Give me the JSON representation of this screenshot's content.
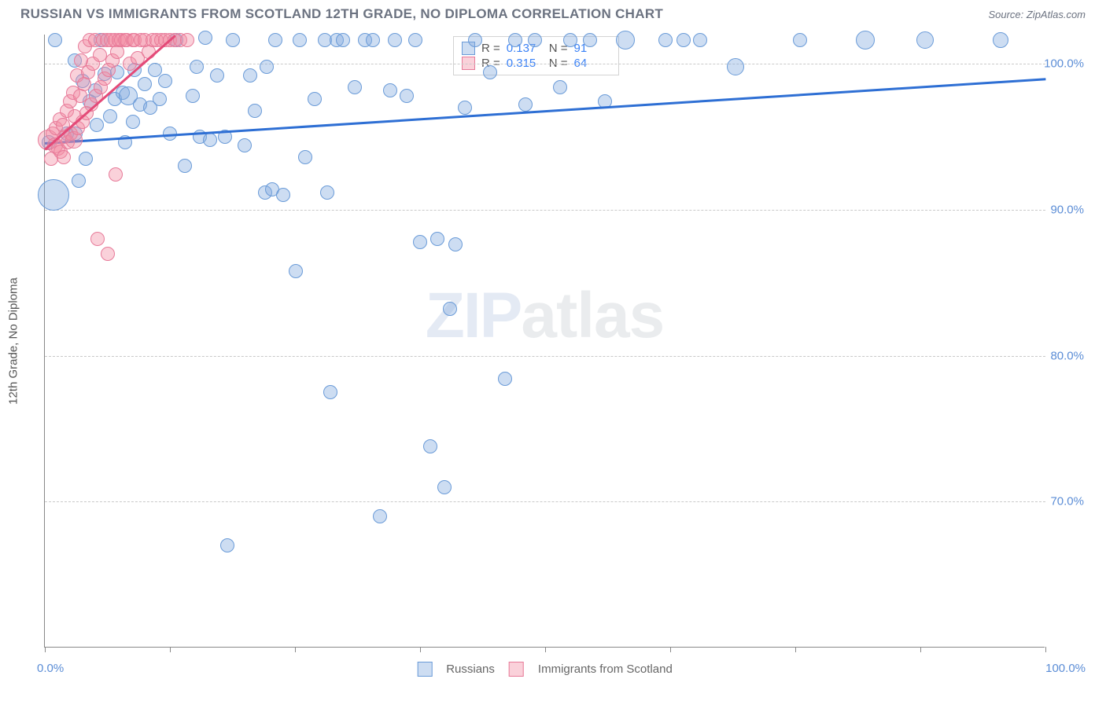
{
  "title": "RUSSIAN VS IMMIGRANTS FROM SCOTLAND 12TH GRADE, NO DIPLOMA CORRELATION CHART",
  "source_label": "Source: ZipAtlas.com",
  "ylabel": "12th Grade, No Diploma",
  "watermark": {
    "part1": "ZIP",
    "part2": "atlas"
  },
  "chart": {
    "type": "scatter",
    "background_color": "#ffffff",
    "grid_color": "#c9c9c9",
    "axis_color": "#888888",
    "xlim": [
      0,
      100
    ],
    "ylim": [
      60,
      102
    ],
    "ytick_labels": [
      {
        "value": 100,
        "label": "100.0%"
      },
      {
        "value": 90,
        "label": "90.0%"
      },
      {
        "value": 80,
        "label": "80.0%"
      },
      {
        "value": 70,
        "label": "70.0%"
      }
    ],
    "xtick_positions": [
      0,
      12.5,
      25,
      37.5,
      50,
      62.5,
      75,
      87.5,
      100
    ],
    "xlabel_start": "0.0%",
    "xlabel_end": "100.0%",
    "ytick_color": "#5b8dd6",
    "series": [
      {
        "name": "Russians",
        "fill": "rgba(131,171,223,0.40)",
        "stroke": "#6a9bd8",
        "marker_radius": 9,
        "trend": {
          "x1": 0,
          "y1": 94.6,
          "x2": 100,
          "y2": 99.0,
          "color": "#2e6fd4",
          "width": 2.5
        },
        "stats": {
          "R": "0.137",
          "N": "91"
        },
        "points": [
          {
            "x": 0.4,
            "y": 94.6,
            "r": 9
          },
          {
            "x": 0.9,
            "y": 91.0,
            "r": 20
          },
          {
            "x": 1.0,
            "y": 101.6,
            "r": 9
          },
          {
            "x": 2.2,
            "y": 95.2,
            "r": 9
          },
          {
            "x": 3.0,
            "y": 100.2,
            "r": 9
          },
          {
            "x": 3.1,
            "y": 95.2,
            "r": 9
          },
          {
            "x": 3.4,
            "y": 92.0,
            "r": 9
          },
          {
            "x": 3.8,
            "y": 98.8,
            "r": 9
          },
          {
            "x": 4.1,
            "y": 93.5,
            "r": 9
          },
          {
            "x": 4.5,
            "y": 97.4,
            "r": 9
          },
          {
            "x": 5.0,
            "y": 98.2,
            "r": 9
          },
          {
            "x": 5.2,
            "y": 95.8,
            "r": 9
          },
          {
            "x": 5.6,
            "y": 101.6,
            "r": 9
          },
          {
            "x": 6.0,
            "y": 99.3,
            "r": 9
          },
          {
            "x": 6.5,
            "y": 96.4,
            "r": 9
          },
          {
            "x": 7.0,
            "y": 97.6,
            "r": 9
          },
          {
            "x": 7.2,
            "y": 99.4,
            "r": 9
          },
          {
            "x": 7.8,
            "y": 98.0,
            "r": 9
          },
          {
            "x": 8.0,
            "y": 94.6,
            "r": 9
          },
          {
            "x": 8.3,
            "y": 97.8,
            "r": 12
          },
          {
            "x": 8.8,
            "y": 96.0,
            "r": 9
          },
          {
            "x": 9.0,
            "y": 99.6,
            "r": 9
          },
          {
            "x": 9.5,
            "y": 97.2,
            "r": 9
          },
          {
            "x": 10.0,
            "y": 98.6,
            "r": 9
          },
          {
            "x": 10.5,
            "y": 97.0,
            "r": 9
          },
          {
            "x": 11.0,
            "y": 99.6,
            "r": 9
          },
          {
            "x": 11.5,
            "y": 97.6,
            "r": 9
          },
          {
            "x": 12.0,
            "y": 98.8,
            "r": 9
          },
          {
            "x": 12.5,
            "y": 95.2,
            "r": 9
          },
          {
            "x": 13.1,
            "y": 101.6,
            "r": 9
          },
          {
            "x": 14.0,
            "y": 93.0,
            "r": 9
          },
          {
            "x": 14.8,
            "y": 97.8,
            "r": 9
          },
          {
            "x": 15.2,
            "y": 99.8,
            "r": 9
          },
          {
            "x": 15.5,
            "y": 95.0,
            "r": 9
          },
          {
            "x": 16.0,
            "y": 101.8,
            "r": 9
          },
          {
            "x": 16.5,
            "y": 94.8,
            "r": 9
          },
          {
            "x": 17.2,
            "y": 99.2,
            "r": 9
          },
          {
            "x": 18.0,
            "y": 95.0,
            "r": 9
          },
          {
            "x": 18.2,
            "y": 67.0,
            "r": 9
          },
          {
            "x": 18.8,
            "y": 101.6,
            "r": 9
          },
          {
            "x": 20.0,
            "y": 94.4,
            "r": 9
          },
          {
            "x": 20.5,
            "y": 99.2,
            "r": 9
          },
          {
            "x": 21.0,
            "y": 96.8,
            "r": 9
          },
          {
            "x": 22.0,
            "y": 91.2,
            "r": 9
          },
          {
            "x": 22.2,
            "y": 99.8,
            "r": 9
          },
          {
            "x": 22.7,
            "y": 91.4,
            "r": 9
          },
          {
            "x": 23.0,
            "y": 101.6,
            "r": 9
          },
          {
            "x": 23.8,
            "y": 91.0,
            "r": 9
          },
          {
            "x": 25.1,
            "y": 85.8,
            "r": 9
          },
          {
            "x": 25.5,
            "y": 101.6,
            "r": 9
          },
          {
            "x": 26.0,
            "y": 93.6,
            "r": 9
          },
          {
            "x": 27.0,
            "y": 97.6,
            "r": 9
          },
          {
            "x": 28.0,
            "y": 101.6,
            "r": 9
          },
          {
            "x": 28.2,
            "y": 91.2,
            "r": 9
          },
          {
            "x": 28.5,
            "y": 77.5,
            "r": 9
          },
          {
            "x": 29.2,
            "y": 101.6,
            "r": 9
          },
          {
            "x": 29.8,
            "y": 101.6,
            "r": 9
          },
          {
            "x": 31.0,
            "y": 98.4,
            "r": 9
          },
          {
            "x": 32.0,
            "y": 101.6,
            "r": 9
          },
          {
            "x": 32.8,
            "y": 101.6,
            "r": 9
          },
          {
            "x": 33.5,
            "y": 69.0,
            "r": 9
          },
          {
            "x": 34.5,
            "y": 98.2,
            "r": 9
          },
          {
            "x": 35.0,
            "y": 101.6,
            "r": 9
          },
          {
            "x": 36.2,
            "y": 97.8,
            "r": 9
          },
          {
            "x": 37.0,
            "y": 101.6,
            "r": 9
          },
          {
            "x": 37.5,
            "y": 87.8,
            "r": 9
          },
          {
            "x": 38.5,
            "y": 73.8,
            "r": 9
          },
          {
            "x": 39.2,
            "y": 88.0,
            "r": 9
          },
          {
            "x": 39.9,
            "y": 71.0,
            "r": 9
          },
          {
            "x": 40.5,
            "y": 83.2,
            "r": 9
          },
          {
            "x": 41.0,
            "y": 87.6,
            "r": 9
          },
          {
            "x": 42.0,
            "y": 97.0,
            "r": 9
          },
          {
            "x": 43.0,
            "y": 101.6,
            "r": 9
          },
          {
            "x": 44.5,
            "y": 99.4,
            "r": 9
          },
          {
            "x": 46.0,
            "y": 78.4,
            "r": 9
          },
          {
            "x": 47.0,
            "y": 101.6,
            "r": 9
          },
          {
            "x": 48.0,
            "y": 97.2,
            "r": 9
          },
          {
            "x": 49.0,
            "y": 101.6,
            "r": 9
          },
          {
            "x": 51.5,
            "y": 98.4,
            "r": 9
          },
          {
            "x": 52.5,
            "y": 101.6,
            "r": 9
          },
          {
            "x": 54.5,
            "y": 101.6,
            "r": 9
          },
          {
            "x": 56.0,
            "y": 97.4,
            "r": 9
          },
          {
            "x": 58.0,
            "y": 101.6,
            "r": 12
          },
          {
            "x": 62.0,
            "y": 101.6,
            "r": 9
          },
          {
            "x": 63.8,
            "y": 101.6,
            "r": 9
          },
          {
            "x": 65.5,
            "y": 101.6,
            "r": 9
          },
          {
            "x": 69.0,
            "y": 99.8,
            "r": 11
          },
          {
            "x": 75.5,
            "y": 101.6,
            "r": 9
          },
          {
            "x": 82.0,
            "y": 101.6,
            "r": 12
          },
          {
            "x": 88.0,
            "y": 101.6,
            "r": 11
          },
          {
            "x": 95.5,
            "y": 101.6,
            "r": 10
          }
        ]
      },
      {
        "name": "Immigrants from Scotland",
        "fill": "rgba(242,140,163,0.40)",
        "stroke": "#e77a99",
        "marker_radius": 9,
        "trend": {
          "x1": 0,
          "y1": 94.2,
          "x2": 13,
          "y2": 102,
          "color": "#e44a78",
          "width": 2.5
        },
        "stats": {
          "R": "0.315",
          "N": "64"
        },
        "points": [
          {
            "x": 0.3,
            "y": 94.8,
            "r": 13
          },
          {
            "x": 0.6,
            "y": 93.5,
            "r": 9
          },
          {
            "x": 0.8,
            "y": 95.2,
            "r": 9
          },
          {
            "x": 1.0,
            "y": 94.4,
            "r": 10
          },
          {
            "x": 1.1,
            "y": 95.6,
            "r": 9
          },
          {
            "x": 1.3,
            "y": 94.2,
            "r": 9
          },
          {
            "x": 1.5,
            "y": 96.2,
            "r": 9
          },
          {
            "x": 1.6,
            "y": 94.0,
            "r": 9
          },
          {
            "x": 1.8,
            "y": 95.8,
            "r": 9
          },
          {
            "x": 1.9,
            "y": 93.6,
            "r": 9
          },
          {
            "x": 2.0,
            "y": 95.0,
            "r": 9
          },
          {
            "x": 2.2,
            "y": 96.8,
            "r": 9
          },
          {
            "x": 2.3,
            "y": 94.6,
            "r": 9
          },
          {
            "x": 2.5,
            "y": 97.4,
            "r": 9
          },
          {
            "x": 2.6,
            "y": 95.2,
            "r": 9
          },
          {
            "x": 2.8,
            "y": 98.0,
            "r": 9
          },
          {
            "x": 2.9,
            "y": 94.8,
            "r": 11
          },
          {
            "x": 3.0,
            "y": 96.4,
            "r": 9
          },
          {
            "x": 3.2,
            "y": 99.2,
            "r": 9
          },
          {
            "x": 3.3,
            "y": 95.6,
            "r": 9
          },
          {
            "x": 3.5,
            "y": 97.8,
            "r": 9
          },
          {
            "x": 3.6,
            "y": 100.2,
            "r": 9
          },
          {
            "x": 3.8,
            "y": 96.0,
            "r": 9
          },
          {
            "x": 3.9,
            "y": 98.6,
            "r": 9
          },
          {
            "x": 4.0,
            "y": 101.2,
            "r": 9
          },
          {
            "x": 4.2,
            "y": 96.6,
            "r": 9
          },
          {
            "x": 4.3,
            "y": 99.4,
            "r": 9
          },
          {
            "x": 4.5,
            "y": 101.6,
            "r": 9
          },
          {
            "x": 4.6,
            "y": 97.2,
            "r": 9
          },
          {
            "x": 4.8,
            "y": 100.0,
            "r": 9
          },
          {
            "x": 5.0,
            "y": 101.6,
            "r": 9
          },
          {
            "x": 5.1,
            "y": 97.8,
            "r": 9
          },
          {
            "x": 5.3,
            "y": 88.0,
            "r": 9
          },
          {
            "x": 5.5,
            "y": 100.6,
            "r": 9
          },
          {
            "x": 5.6,
            "y": 98.4,
            "r": 9
          },
          {
            "x": 5.8,
            "y": 101.6,
            "r": 9
          },
          {
            "x": 6.0,
            "y": 99.0,
            "r": 9
          },
          {
            "x": 6.2,
            "y": 101.6,
            "r": 9
          },
          {
            "x": 6.3,
            "y": 87.0,
            "r": 9
          },
          {
            "x": 6.4,
            "y": 99.6,
            "r": 9
          },
          {
            "x": 6.6,
            "y": 101.6,
            "r": 9
          },
          {
            "x": 6.8,
            "y": 100.2,
            "r": 9
          },
          {
            "x": 7.0,
            "y": 101.6,
            "r": 9
          },
          {
            "x": 7.1,
            "y": 92.4,
            "r": 9
          },
          {
            "x": 7.2,
            "y": 100.8,
            "r": 9
          },
          {
            "x": 7.4,
            "y": 101.6,
            "r": 9
          },
          {
            "x": 7.6,
            "y": 101.6,
            "r": 9
          },
          {
            "x": 8.0,
            "y": 101.6,
            "r": 9
          },
          {
            "x": 8.2,
            "y": 101.6,
            "r": 9
          },
          {
            "x": 8.5,
            "y": 100.0,
            "r": 9
          },
          {
            "x": 8.8,
            "y": 101.6,
            "r": 9
          },
          {
            "x": 9.0,
            "y": 101.6,
            "r": 9
          },
          {
            "x": 9.3,
            "y": 100.4,
            "r": 9
          },
          {
            "x": 9.6,
            "y": 101.6,
            "r": 9
          },
          {
            "x": 10.0,
            "y": 101.6,
            "r": 9
          },
          {
            "x": 10.4,
            "y": 100.8,
            "r": 9
          },
          {
            "x": 10.8,
            "y": 101.6,
            "r": 9
          },
          {
            "x": 11.2,
            "y": 101.6,
            "r": 9
          },
          {
            "x": 11.6,
            "y": 101.6,
            "r": 9
          },
          {
            "x": 12.0,
            "y": 101.6,
            "r": 9
          },
          {
            "x": 12.5,
            "y": 101.6,
            "r": 9
          },
          {
            "x": 13.0,
            "y": 101.6,
            "r": 9
          },
          {
            "x": 13.5,
            "y": 101.6,
            "r": 9
          },
          {
            "x": 14.2,
            "y": 101.6,
            "r": 9
          }
        ]
      }
    ],
    "stats_box": {
      "left_pct": 40.8,
      "top_y": 101.9
    },
    "legend_label_1": "Russians",
    "legend_label_2": "Immigrants from Scotland",
    "stats_labels": {
      "R": "R =",
      "N": "N ="
    }
  }
}
